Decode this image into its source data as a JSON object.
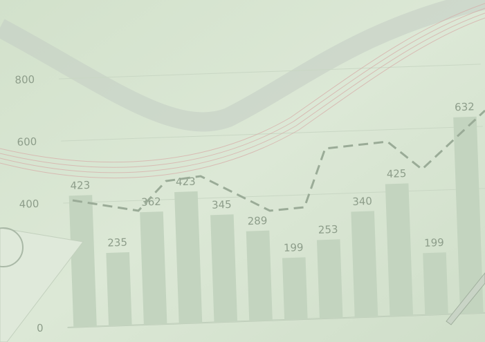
{
  "chart_data": {
    "type": "bar",
    "values": [
      423,
      235,
      362,
      423,
      345,
      289,
      199,
      253,
      340,
      425,
      199,
      632
    ],
    "color": "#c3d4bf",
    "ylim": [
      0,
      1000
    ],
    "yticks": [
      0,
      400,
      600,
      800
    ]
  }
}
